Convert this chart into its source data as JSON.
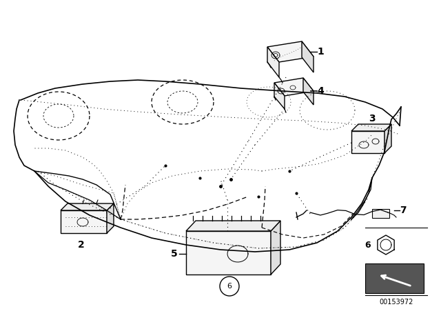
{
  "bg_color": "#ffffff",
  "fig_width": 6.4,
  "fig_height": 4.48,
  "dpi": 100,
  "part_number": "00153972",
  "title_color": "#000000",
  "line_color": "#000000",
  "dot_color": "#000000"
}
